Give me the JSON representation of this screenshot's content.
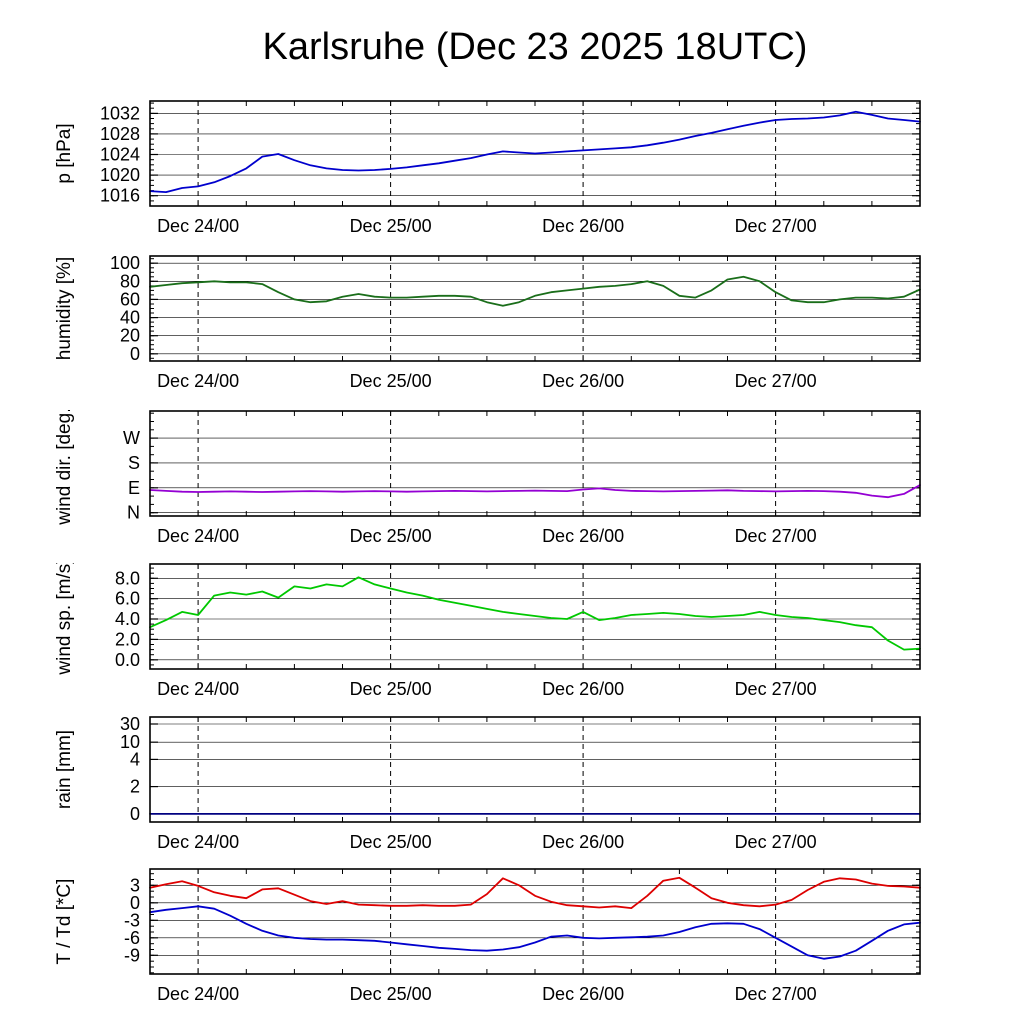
{
  "title": "Karlsruhe (Dec 23 2025 18UTC)",
  "chart_data": {
    "type": "line",
    "title": "Karlsruhe (Dec 23 2025 18UTC)",
    "x_axis": {
      "total_hours": 96,
      "tick_hours": [
        6,
        30,
        54,
        78
      ],
      "tick_labels": [
        "Dec 24/00",
        "Dec 25/00",
        "Dec 26/00",
        "Dec 27/00"
      ],
      "minor_tick_every_hours": 6,
      "grid": "dashed-vertical-at-midnight"
    },
    "panels": [
      {
        "name": "pressure",
        "ylabel": "p [hPa]",
        "ymin": 1014.0,
        "ymax": 1034.4,
        "yticks": [
          {
            "v": 1016,
            "label": "1016"
          },
          {
            "v": 1020,
            "label": "1020"
          },
          {
            "v": 1024,
            "label": "1024"
          },
          {
            "v": 1028,
            "label": "1028"
          },
          {
            "v": 1032,
            "label": "1032"
          }
        ],
        "yminor_step": 1,
        "series": [
          {
            "name": "pressure",
            "color": "#0000cd",
            "values": [
              1016.9,
              1016.7,
              1017.5,
              1017.8,
              1018.6,
              1019.8,
              1021.3,
              1023.6,
              1024.1,
              1022.9,
              1021.9,
              1021.3,
              1021.0,
              1020.9,
              1021.0,
              1021.2,
              1021.5,
              1021.9,
              1022.3,
              1022.8,
              1023.3,
              1024.0,
              1024.6,
              1024.4,
              1024.2,
              1024.4,
              1024.6,
              1024.8,
              1025.0,
              1025.2,
              1025.4,
              1025.8,
              1026.3,
              1026.9,
              1027.6,
              1028.2,
              1028.9,
              1029.6,
              1030.2,
              1030.7,
              1030.9,
              1031.0,
              1031.2,
              1031.6,
              1032.3,
              1031.7,
              1031.0,
              1030.7,
              1030.4
            ]
          }
        ]
      },
      {
        "name": "humidity",
        "ylabel": "humidity [%]",
        "ymin": -8,
        "ymax": 108,
        "yticks": [
          {
            "v": 0,
            "label": "0"
          },
          {
            "v": 20,
            "label": "20"
          },
          {
            "v": 40,
            "label": "40"
          },
          {
            "v": 60,
            "label": "60"
          },
          {
            "v": 80,
            "label": "80"
          },
          {
            "v": 100,
            "label": "100"
          }
        ],
        "yminor_step": 5,
        "series": [
          {
            "name": "humidity",
            "color": "#1a6e1a",
            "values": [
              74,
              76,
              78,
              79,
              80,
              79,
              79,
              77,
              68,
              60,
              57,
              58,
              63,
              66,
              63,
              62,
              62,
              63,
              64,
              64,
              63,
              57,
              53,
              57,
              64,
              68,
              70,
              72,
              74,
              75,
              77,
              80,
              75,
              64,
              62,
              70,
              82,
              85,
              80,
              68,
              59,
              57,
              57,
              60,
              62,
              62,
              61,
              63,
              71
            ]
          }
        ]
      },
      {
        "name": "wind-direction",
        "ylabel": "wind dir. [deg.]",
        "ymin": -12,
        "ymax": 368,
        "yticks": [
          {
            "v": 0,
            "label": "N"
          },
          {
            "v": 90,
            "label": "E"
          },
          {
            "v": 180,
            "label": "S"
          },
          {
            "v": 270,
            "label": "W"
          }
        ],
        "yminor_step": 30,
        "series": [
          {
            "name": "wind-direction",
            "color": "#9400d3",
            "values": [
              82,
              79,
              76,
              75,
              76,
              77,
              76,
              75,
              76,
              77,
              78,
              77,
              76,
              77,
              78,
              77,
              76,
              77,
              78,
              79,
              78,
              77,
              78,
              79,
              80,
              79,
              78,
              84,
              88,
              82,
              79,
              78,
              77,
              78,
              79,
              80,
              81,
              79,
              78,
              77,
              78,
              79,
              78,
              76,
              72,
              62,
              56,
              68,
              100
            ]
          }
        ]
      },
      {
        "name": "wind-speed",
        "ylabel": "wind sp. [m/s]",
        "ymin": -0.9,
        "ymax": 9.4,
        "yticks": [
          {
            "v": 0,
            "label": "0.0"
          },
          {
            "v": 2,
            "label": "2.0"
          },
          {
            "v": 4,
            "label": "4.0"
          },
          {
            "v": 6,
            "label": "6.0"
          },
          {
            "v": 8,
            "label": "8.0"
          }
        ],
        "yminor_step": 0.5,
        "series": [
          {
            "name": "wind-speed",
            "color": "#00c800",
            "values": [
              3.2,
              3.9,
              4.7,
              4.4,
              6.3,
              6.6,
              6.4,
              6.7,
              6.1,
              7.2,
              7.0,
              7.4,
              7.2,
              8.1,
              7.4,
              7.0,
              6.6,
              6.3,
              5.9,
              5.6,
              5.3,
              5.0,
              4.7,
              4.5,
              4.3,
              4.1,
              4.0,
              4.7,
              3.9,
              4.1,
              4.4,
              4.5,
              4.6,
              4.5,
              4.3,
              4.2,
              4.3,
              4.4,
              4.7,
              4.4,
              4.2,
              4.1,
              3.9,
              3.7,
              3.4,
              3.2,
              1.9,
              1.0,
              1.1
            ]
          }
        ]
      },
      {
        "name": "rain",
        "ylabel": "rain [mm]",
        "scale_points": [
          {
            "v": 0,
            "f": 0.077
          },
          {
            "v": 2,
            "f": 0.337
          },
          {
            "v": 4,
            "f": 0.596
          },
          {
            "v": 10,
            "f": 0.76
          },
          {
            "v": 30,
            "f": 0.933
          }
        ],
        "yticks": [
          {
            "v": 0,
            "label": "0"
          },
          {
            "v": 2,
            "label": "2"
          },
          {
            "v": 4,
            "label": "4"
          },
          {
            "v": 10,
            "label": "10"
          },
          {
            "v": 30,
            "label": "30"
          }
        ],
        "series": [
          {
            "name": "rain",
            "color": "#000080",
            "values": [
              0,
              0,
              0,
              0,
              0,
              0,
              0,
              0,
              0,
              0,
              0,
              0,
              0,
              0,
              0,
              0,
              0,
              0,
              0,
              0,
              0,
              0,
              0,
              0,
              0,
              0,
              0,
              0,
              0,
              0,
              0,
              0,
              0,
              0,
              0,
              0,
              0,
              0,
              0,
              0,
              0,
              0,
              0,
              0,
              0,
              0,
              0,
              0,
              0
            ]
          }
        ]
      },
      {
        "name": "temperature",
        "ylabel": "T / Td [*C]",
        "ymin": -12.2,
        "ymax": 5.8,
        "yticks": [
          {
            "v": -9,
            "label": "-9"
          },
          {
            "v": -6,
            "label": "-6"
          },
          {
            "v": -3,
            "label": "-3"
          },
          {
            "v": 0,
            "label": "0"
          },
          {
            "v": 3,
            "label": "3"
          }
        ],
        "yminor_step": 1,
        "series": [
          {
            "name": "temperature",
            "color": "#dd0000",
            "values": [
              2.6,
              3.2,
              3.7,
              2.9,
              1.8,
              1.2,
              0.8,
              2.3,
              2.5,
              1.4,
              0.3,
              -0.2,
              0.3,
              -0.3,
              -0.4,
              -0.5,
              -0.5,
              -0.4,
              -0.5,
              -0.5,
              -0.3,
              1.5,
              4.2,
              3.0,
              1.2,
              0.2,
              -0.4,
              -0.6,
              -0.8,
              -0.6,
              -0.9,
              1.2,
              3.8,
              4.3,
              2.6,
              0.8,
              0.0,
              -0.4,
              -0.6,
              -0.3,
              0.5,
              2.2,
              3.6,
              4.2,
              4.0,
              3.3,
              2.9,
              2.8,
              2.6
            ]
          },
          {
            "name": "dewpoint",
            "color": "#0000cd",
            "values": [
              -1.6,
              -1.2,
              -0.9,
              -0.6,
              -1.0,
              -2.2,
              -3.6,
              -4.8,
              -5.6,
              -6.0,
              -6.2,
              -6.3,
              -6.3,
              -6.4,
              -6.5,
              -6.8,
              -7.1,
              -7.4,
              -7.7,
              -7.9,
              -8.1,
              -8.2,
              -8.0,
              -7.6,
              -6.8,
              -5.8,
              -5.6,
              -6.0,
              -6.1,
              -6.0,
              -5.9,
              -5.8,
              -5.6,
              -5.0,
              -4.2,
              -3.6,
              -3.5,
              -3.6,
              -4.5,
              -6.0,
              -7.5,
              -9.0,
              -9.6,
              -9.2,
              -8.2,
              -6.5,
              -4.8,
              -3.7,
              -3.4
            ]
          }
        ]
      }
    ]
  }
}
